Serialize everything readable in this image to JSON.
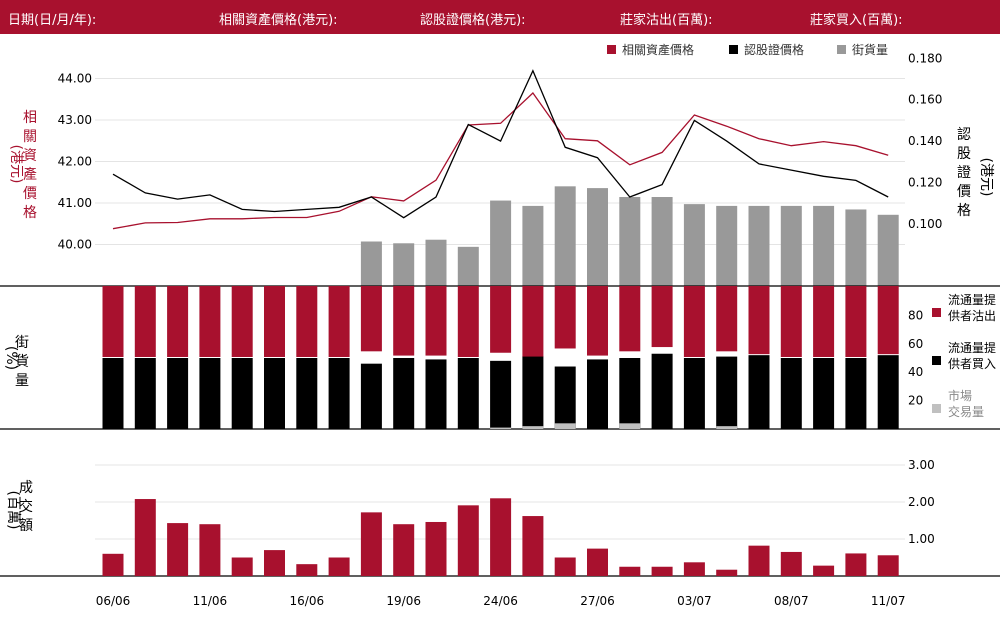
{
  "header": {
    "date_label": "日期(日/月/年):",
    "underlying_label": "相關資產價格(港元):",
    "warrant_label": "認股證價格(港元):",
    "lp_sell_label": "莊家沽出(百萬):",
    "lp_buy_label": "莊家買入(百萬):"
  },
  "colors": {
    "header": "#a8112e",
    "red": "#a8112e",
    "black": "#000000",
    "gray": "#999999",
    "lightgray": "#c0c0c0"
  },
  "chart_data": [
    {
      "type": "line",
      "legend": [
        "相關資產價格",
        "認股證價格",
        "街貨量"
      ],
      "legend_position": "top-right",
      "y_left_label": [
        "相",
        "關",
        "資",
        "產",
        "價",
        "格"
      ],
      "y_left_unit": "(港元)",
      "y_right_label": [
        "認",
        "股",
        "證",
        "價",
        "格"
      ],
      "y_right_unit": "(港元)",
      "y_left_ticks": [
        "40.00",
        "41.00",
        "42.00",
        "43.00",
        "44.00"
      ],
      "y_left_range": [
        39.0,
        44.0
      ],
      "y_right_ticks": [
        "0.100",
        "0.120",
        "0.140",
        "0.160",
        "0.180"
      ],
      "y_right_range": [
        0.07,
        0.18
      ],
      "underlying": [
        40.38,
        40.52,
        40.53,
        40.62,
        40.62,
        40.65,
        40.65,
        40.8,
        41.15,
        41.05,
        41.55,
        42.88,
        42.92,
        43.65,
        42.55,
        42.5,
        41.92,
        42.22,
        43.12,
        42.85,
        42.55,
        42.38,
        42.48,
        42.38,
        42.15
      ],
      "warrant": [
        0.124,
        0.115,
        0.112,
        0.114,
        0.107,
        0.106,
        0.107,
        0.108,
        0.113,
        0.103,
        0.113,
        0.148,
        0.14,
        0.174,
        0.137,
        0.132,
        0.113,
        0.119,
        0.15,
        0.14,
        0.129,
        0.126,
        0.123,
        0.121,
        0.113
      ],
      "outstanding_pct": [
        0,
        0,
        0,
        0,
        0,
        0,
        0,
        0,
        25,
        24,
        26,
        22,
        48,
        45,
        56,
        55,
        50,
        50,
        46,
        45,
        45,
        45,
        45,
        43,
        40
      ]
    },
    {
      "type": "bar",
      "y_label": [
        "街",
        "貨",
        "量"
      ],
      "y_unit": "(%)",
      "y_ticks": [
        "20",
        "40",
        "60",
        "80"
      ],
      "y_range": [
        0,
        100
      ],
      "legend": [
        "流通量提供者沽出",
        "流通量提供者買入",
        "市場交易量"
      ],
      "lp_sell_pct": [
        50,
        50,
        50,
        50,
        50,
        50,
        50,
        50,
        46,
        49,
        49,
        50,
        47,
        50,
        44,
        49,
        46,
        43,
        50,
        46,
        48,
        50,
        50,
        50,
        48
      ],
      "lp_buy_pct": [
        50,
        50,
        50,
        50,
        50,
        50,
        50,
        50,
        46,
        50,
        49,
        50,
        48,
        51,
        44,
        49,
        50,
        53,
        50,
        51,
        52,
        50,
        50,
        50,
        52
      ],
      "market_pct": [
        0,
        0,
        0,
        0,
        0,
        0,
        0,
        0,
        0,
        0,
        0,
        0,
        1,
        2,
        4,
        0,
        4,
        0,
        0,
        2,
        0,
        0,
        0,
        0,
        0
      ]
    },
    {
      "type": "bar",
      "y_label": [
        "成",
        "交",
        "額"
      ],
      "y_unit": "(百萬)",
      "y_ticks": [
        "1.00",
        "2.00",
        "3.00"
      ],
      "y_range": [
        0,
        3.0
      ],
      "x_ticks": [
        "06/06",
        "11/06",
        "16/06",
        "19/06",
        "24/06",
        "27/06",
        "03/07",
        "08/07",
        "11/07"
      ],
      "turnover": [
        0.6,
        2.08,
        1.43,
        1.4,
        0.5,
        0.7,
        0.32,
        0.5,
        1.72,
        1.4,
        1.46,
        1.91,
        2.1,
        1.62,
        0.5,
        0.74,
        0.25,
        0.25,
        0.37,
        0.17,
        0.82,
        0.65,
        0.28,
        0.61,
        0.56
      ]
    }
  ]
}
